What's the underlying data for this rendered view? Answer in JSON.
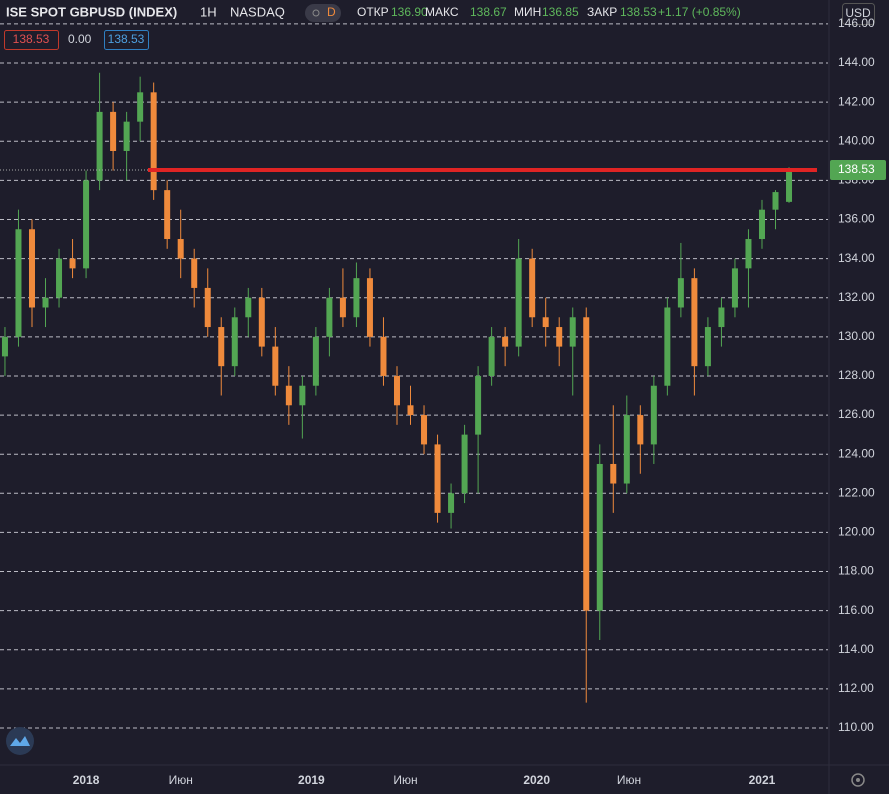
{
  "chart_data": {
    "type": "candlestick",
    "header": {
      "symbol": "ISE SPOT GBPUSD (INDEX)",
      "interval": "1H",
      "exchange": "NASDAQ",
      "badge": "D",
      "open_label": "ОТКР",
      "open": "136.90",
      "high_label": "МАКС",
      "high": "138.67",
      "low_label": "МИН",
      "low": "136.85",
      "close_label": "ЗАКР",
      "close": "138.53",
      "change": "+1.17 (+0.85%)",
      "indicator_left": "138.53",
      "indicator_mid": "0.00",
      "indicator_right": "138.53",
      "currency": "USD"
    },
    "x": [
      2017.64,
      2017.7,
      2017.76,
      2017.82,
      2017.88,
      2017.94,
      2018.0,
      2018.06,
      2018.12,
      2018.18,
      2018.24,
      2018.3,
      2018.36,
      2018.42,
      2018.48,
      2018.54,
      2018.6,
      2018.66,
      2018.72,
      2018.78,
      2018.84,
      2018.9,
      2018.96,
      2019.02,
      2019.08,
      2019.14,
      2019.2,
      2019.26,
      2019.32,
      2019.38,
      2019.44,
      2019.5,
      2019.56,
      2019.62,
      2019.68,
      2019.74,
      2019.8,
      2019.86,
      2019.92,
      2019.98,
      2020.04,
      2020.1,
      2020.16,
      2020.22,
      2020.28,
      2020.34,
      2020.4,
      2020.46,
      2020.52,
      2020.58,
      2020.64,
      2020.7,
      2020.76,
      2020.82,
      2020.88,
      2020.94,
      2021.0,
      2021.06,
      2021.12
    ],
    "open": [
      129,
      130,
      135.5,
      131.5,
      132,
      134,
      133.5,
      138,
      141.5,
      139.5,
      141,
      142.5,
      137.5,
      135,
      134,
      132.5,
      130.5,
      128.5,
      131,
      132,
      129.5,
      127.5,
      126.5,
      127.5,
      130,
      132,
      131,
      133,
      130,
      128,
      126.5,
      126,
      124.5,
      121,
      122,
      125,
      128,
      130,
      129.5,
      134,
      131,
      130.5,
      129.5,
      131,
      116,
      123.5,
      122.5,
      126,
      124.5,
      127.5,
      131.5,
      133,
      128.5,
      130.5,
      131.5,
      133.5,
      135,
      136.5,
      136.9
    ],
    "high": [
      130.5,
      136.5,
      136,
      133,
      134.5,
      135,
      138.5,
      143.5,
      142,
      141.5,
      143.3,
      143,
      138,
      136.5,
      134.5,
      133.5,
      131,
      131.5,
      132.5,
      132.5,
      130.5,
      128.5,
      128,
      130.5,
      132.5,
      133.5,
      133.8,
      133.5,
      131,
      128.5,
      127.5,
      126.5,
      125,
      122.5,
      125.5,
      128.5,
      130.5,
      130.5,
      135,
      134.5,
      132,
      131,
      131.5,
      131.5,
      124.5,
      126.5,
      127,
      126.5,
      128,
      132,
      134.8,
      133.5,
      131,
      132,
      134,
      135.5,
      137,
      137.5,
      138.67
    ],
    "low": [
      128,
      129.5,
      130.5,
      130.5,
      131.5,
      133,
      133,
      137.5,
      138.5,
      138,
      140,
      137,
      134.5,
      133,
      131.5,
      130,
      127,
      128,
      130,
      129,
      127,
      125.5,
      124.8,
      127,
      129,
      130.5,
      130.5,
      129.5,
      127.5,
      125.5,
      125.5,
      124,
      120.5,
      120.2,
      121.5,
      122,
      127.5,
      128.5,
      129,
      130.5,
      129.5,
      128.5,
      127,
      111.3,
      114.5,
      121,
      122,
      123,
      123.5,
      127,
      131,
      127,
      128,
      129.5,
      131,
      131.5,
      134.5,
      135.5,
      136.85
    ],
    "close": [
      130,
      135.5,
      131.5,
      132,
      134,
      133.5,
      138,
      141.5,
      139.5,
      141,
      142.5,
      137.5,
      135,
      134,
      132.5,
      130.5,
      128.5,
      131,
      132,
      129.5,
      127.5,
      126.5,
      127.5,
      130,
      132,
      131,
      133,
      130,
      128,
      126.5,
      126,
      124.5,
      121,
      122,
      125,
      128,
      130,
      129.5,
      134,
      131,
      130.5,
      129.5,
      131,
      116,
      123.5,
      122.5,
      126,
      124.5,
      127.5,
      131.5,
      133,
      128.5,
      130.5,
      131.5,
      133.5,
      135,
      136.5,
      137.4,
      138.53
    ],
    "up_color": "#53a653",
    "down_color": "#ef8a3c",
    "last_price": {
      "value": 138.53,
      "label": "138.53"
    },
    "last_price_color": "#e02424",
    "xlim": [
      2017.618,
      2021.293
    ],
    "xticks": [
      2018,
      {
        "value": 2018.42,
        "label": "Июн"
      },
      2019,
      {
        "value": 2019.418,
        "label": "Июн"
      },
      2020,
      {
        "value": 2020.41,
        "label": "Июн"
      },
      2021
    ],
    "ylim": [
      108.11,
      147.22
    ],
    "yticks": [
      {
        "value": 110,
        "label": "110.00"
      },
      {
        "value": 112,
        "label": "112.00"
      },
      {
        "value": 114,
        "label": "114.00"
      },
      {
        "value": 116,
        "label": "116.00"
      },
      {
        "value": 118,
        "label": "118.00"
      },
      {
        "value": 120,
        "label": "120.00"
      },
      {
        "value": 122,
        "label": "122.00"
      },
      {
        "value": 124,
        "label": "124.00"
      },
      {
        "value": 126,
        "label": "126.00"
      },
      {
        "value": 128,
        "label": "128.00"
      },
      {
        "value": 130,
        "label": "130.00"
      },
      {
        "value": 132,
        "label": "132.00"
      },
      {
        "value": 134,
        "label": "134.00"
      },
      {
        "value": 136,
        "label": "136.00"
      },
      {
        "value": 138,
        "label": "138.00"
      },
      {
        "value": 140,
        "label": "140.00"
      },
      {
        "value": 142,
        "label": "142.00"
      },
      {
        "value": 144,
        "label": "144.00"
      },
      {
        "value": 146,
        "label": "146.00"
      }
    ],
    "grid": true
  }
}
